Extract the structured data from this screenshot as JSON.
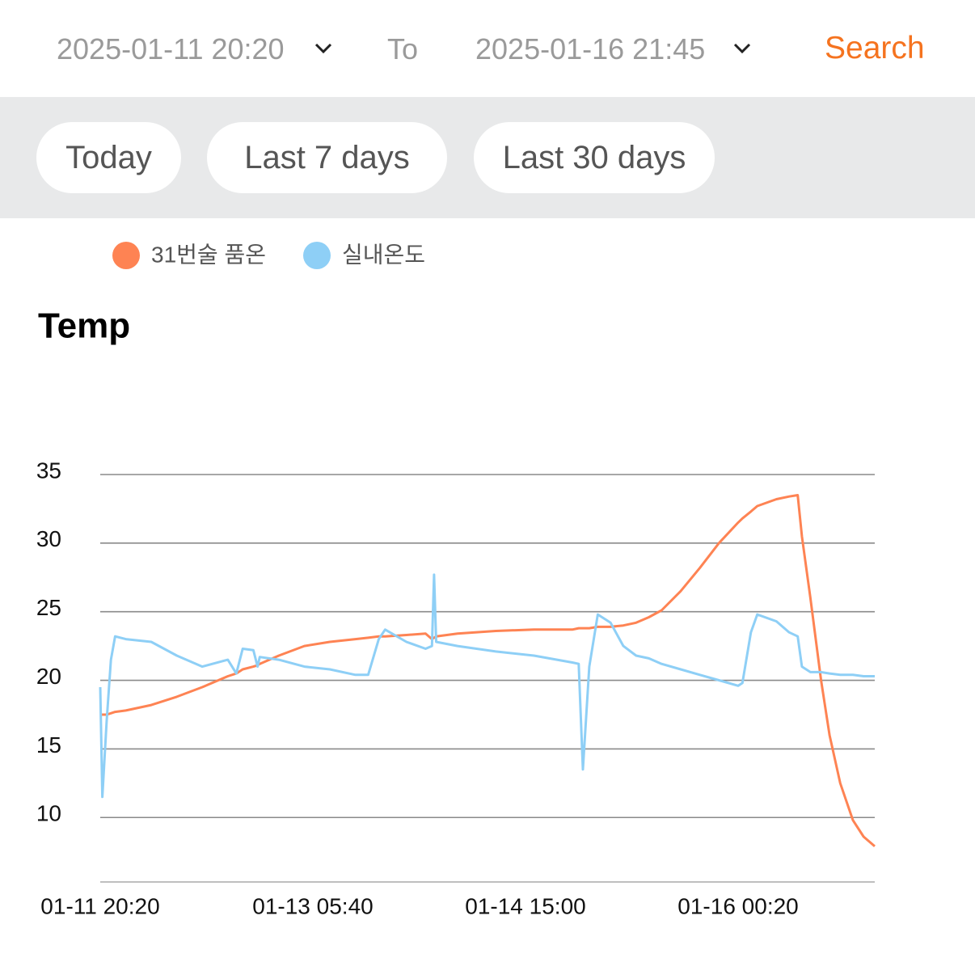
{
  "header": {
    "start": "2025-01-11 20:20",
    "to": "To",
    "end": "2025-01-16 21:45",
    "search": "Search"
  },
  "quick_ranges": [
    "Today",
    "Last 7 days",
    "Last 30 days"
  ],
  "chart_data": {
    "type": "line",
    "title": "Temp",
    "x": [
      "01-11 20:20",
      "01-11 20:40",
      "01-11 21:20",
      "01-11 22:00",
      "01-11 22:40",
      "01-12 00:20",
      "01-12 04:20",
      "01-12 08:20",
      "01-12 12:20",
      "01-12 16:20",
      "01-12 17:40",
      "01-12 18:40",
      "01-12 20:20",
      "01-12 21:00",
      "01-12 21:20",
      "01-13 00:20",
      "01-13 04:20",
      "01-13 08:20",
      "01-13 12:20",
      "01-13 14:20",
      "01-13 16:00",
      "01-13 17:00",
      "01-13 20:20",
      "01-13 23:20",
      "01-14 00:20",
      "01-14 00:40",
      "01-14 01:00",
      "01-14 04:20",
      "01-14 10:20",
      "01-14 16:20",
      "01-14 22:20",
      "01-14 23:20",
      "01-15 00:00",
      "01-15 01:00",
      "01-15 02:20",
      "01-15 04:20",
      "01-15 06:20",
      "01-15 08:20",
      "01-15 10:20",
      "01-15 12:20",
      "01-15 15:20",
      "01-15 18:20",
      "01-15 21:20",
      "01-16 00:20",
      "01-16 01:00",
      "01-16 02:20",
      "01-16 03:20",
      "01-16 06:20",
      "01-16 08:20",
      "01-16 09:40",
      "01-16 10:20",
      "01-16 11:40",
      "01-16 13:20",
      "01-16 14:40",
      "01-16 16:20",
      "01-16 18:20",
      "01-16 20:00",
      "01-16 21:45"
    ],
    "series": [
      {
        "name": "31번술 품온",
        "color": "#fe8353",
        "values": [
          17.5,
          17.5,
          17.5,
          17.6,
          17.7,
          17.8,
          18.2,
          18.8,
          19.5,
          20.3,
          20.5,
          20.8,
          21.0,
          21.1,
          21.2,
          21.8,
          22.5,
          22.8,
          23.0,
          23.1,
          23.2,
          23.2,
          23.3,
          23.4,
          23.0,
          23.1,
          23.2,
          23.4,
          23.6,
          23.7,
          23.7,
          23.8,
          23.8,
          23.8,
          23.9,
          23.9,
          24.0,
          24.2,
          24.6,
          25.1,
          26.5,
          28.2,
          30.0,
          31.5,
          31.8,
          32.3,
          32.7,
          33.2,
          33.4,
          33.5,
          30.5,
          26.0,
          20.0,
          16.0,
          12.5,
          9.8,
          8.6,
          7.9
        ]
      },
      {
        "name": "실내온도",
        "color": "#8ecff6",
        "values": [
          19.5,
          11.5,
          17.0,
          21.5,
          23.2,
          23.0,
          22.8,
          21.8,
          21.0,
          21.5,
          20.5,
          22.3,
          22.2,
          21.0,
          21.7,
          21.5,
          21.0,
          20.8,
          20.4,
          20.4,
          23.0,
          23.7,
          22.8,
          22.3,
          22.5,
          27.7,
          22.8,
          22.5,
          22.1,
          21.8,
          21.3,
          21.2,
          13.5,
          21.0,
          24.8,
          24.2,
          22.5,
          21.8,
          21.6,
          21.2,
          20.8,
          20.4,
          20.0,
          19.6,
          19.8,
          23.5,
          24.8,
          24.3,
          23.5,
          23.2,
          21.0,
          20.6,
          20.6,
          20.5,
          20.4,
          20.4,
          20.3,
          20.3
        ]
      }
    ],
    "xlim": [
      "01-11 20:20",
      "01-16 21:45"
    ],
    "xticks": [
      "01-11 20:20",
      "01-13 05:40",
      "01-14 15:00",
      "01-16 00:20"
    ],
    "ylim": [
      5.3,
      35
    ],
    "yticks": [
      10,
      15,
      20,
      25,
      30,
      35
    ],
    "grid": true
  }
}
